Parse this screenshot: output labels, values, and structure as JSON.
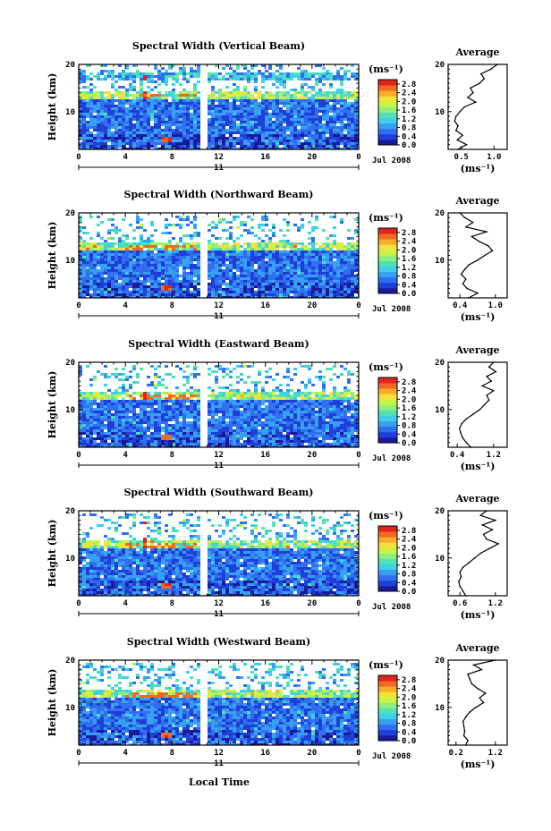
{
  "figure": {
    "date_label": "Jul 2008",
    "day_label": "11",
    "xlabel": "Local Time",
    "ylabel": "Height (km)",
    "unit_label": "(ms⁻¹)",
    "profile_title": "Average",
    "profile_xlabel": "(ms⁻¹)"
  },
  "chart_data": [
    {
      "type": "heatmap",
      "title": "Spectral Width (Vertical Beam)",
      "xlabel": "Local Time",
      "ylabel": "Height (km)",
      "x_ticks": [
        "0",
        "4",
        "8",
        "12",
        "16",
        "20",
        "0"
      ],
      "y_ticks": [
        "10",
        "20"
      ],
      "xlim": [
        0,
        24
      ],
      "ylim": [
        2,
        20
      ],
      "data_gap_hours": [
        10.5,
        11.0
      ],
      "colorbar": {
        "label": "(ms⁻¹)",
        "ticks": [
          "0.0",
          "0.4",
          "0.8",
          "1.2",
          "1.6",
          "2.0",
          "2.4",
          "2.8"
        ],
        "range": [
          0,
          3.0
        ]
      },
      "profile": {
        "title": "Average",
        "xlabel": "(ms⁻¹)",
        "x_ticks": [
          "0.5",
          "1.0"
        ],
        "xlim": [
          0.3,
          1.2
        ],
        "y_ticks": [
          "10",
          "20"
        ],
        "heights": [
          2,
          3,
          4,
          5,
          6,
          7,
          8,
          9,
          10,
          11,
          12,
          13,
          14,
          15,
          16,
          17,
          18,
          19,
          20
        ],
        "values": [
          0.45,
          0.58,
          0.44,
          0.52,
          0.42,
          0.45,
          0.4,
          0.42,
          0.48,
          0.55,
          0.72,
          0.6,
          0.68,
          0.64,
          0.78,
          0.85,
          0.8,
          0.95,
          1.05
        ]
      }
    },
    {
      "type": "heatmap",
      "title": "Spectral Width (Northward Beam)",
      "xlabel": "Local Time",
      "ylabel": "Height (km)",
      "x_ticks": [
        "0",
        "4",
        "8",
        "12",
        "16",
        "20",
        "0"
      ],
      "y_ticks": [
        "10",
        "20"
      ],
      "xlim": [
        0,
        24
      ],
      "ylim": [
        2,
        20
      ],
      "data_gap_hours": [
        10.5,
        11.0
      ],
      "colorbar": {
        "label": "(ms⁻¹)",
        "ticks": [
          "0.0",
          "0.4",
          "0.8",
          "1.2",
          "1.6",
          "2.0",
          "2.4",
          "2.8"
        ],
        "range": [
          0,
          3.0
        ]
      },
      "profile": {
        "title": "Average",
        "xlabel": "(ms⁻¹)",
        "x_ticks": [
          "0.4",
          "1.0"
        ],
        "xlim": [
          0.2,
          1.2
        ],
        "y_ticks": [
          "10",
          "20"
        ],
        "heights": [
          2,
          3,
          4,
          5,
          6,
          7,
          8,
          9,
          10,
          11,
          12,
          13,
          14,
          15,
          16,
          17,
          18,
          19,
          20
        ],
        "values": [
          0.55,
          0.7,
          0.52,
          0.45,
          0.5,
          0.42,
          0.48,
          0.55,
          0.7,
          0.82,
          0.95,
          0.88,
          0.72,
          0.6,
          0.85,
          0.5,
          0.62,
          0.48,
          0.4
        ]
      }
    },
    {
      "type": "heatmap",
      "title": "Spectral Width (Eastward Beam)",
      "xlabel": "Local Time",
      "ylabel": "Height (km)",
      "x_ticks": [
        "0",
        "4",
        "8",
        "12",
        "16",
        "20",
        "0"
      ],
      "y_ticks": [
        "10",
        "20"
      ],
      "xlim": [
        0,
        24
      ],
      "ylim": [
        2,
        20
      ],
      "data_gap_hours": [
        10.5,
        11.0
      ],
      "colorbar": {
        "label": "(ms⁻¹)",
        "ticks": [
          "0.0",
          "0.4",
          "0.8",
          "1.2",
          "1.6",
          "2.0",
          "2.4",
          "2.8"
        ],
        "range": [
          0,
          3.0
        ]
      },
      "profile": {
        "title": "Average",
        "xlabel": "(ms⁻¹)",
        "x_ticks": [
          "0.4",
          "1.2"
        ],
        "xlim": [
          0.2,
          1.5
        ],
        "y_ticks": [
          "10",
          "20"
        ],
        "heights": [
          2,
          3,
          4,
          5,
          6,
          7,
          8,
          9,
          10,
          11,
          12,
          13,
          14,
          15,
          16,
          17,
          18,
          19,
          20
        ],
        "values": [
          0.7,
          0.6,
          0.52,
          0.48,
          0.45,
          0.5,
          0.6,
          0.75,
          0.9,
          1.0,
          1.1,
          1.05,
          1.2,
          0.95,
          1.15,
          1.05,
          1.25,
          1.1,
          1.2
        ]
      }
    },
    {
      "type": "heatmap",
      "title": "Spectral Width (Southward Beam)",
      "xlabel": "Local Time",
      "ylabel": "Height (km)",
      "x_ticks": [
        "0",
        "4",
        "8",
        "12",
        "16",
        "20",
        "0"
      ],
      "y_ticks": [
        "10",
        "20"
      ],
      "xlim": [
        0,
        24
      ],
      "ylim": [
        2,
        20
      ],
      "data_gap_hours": [
        10.5,
        11.0
      ],
      "colorbar": {
        "label": "(ms⁻¹)",
        "ticks": [
          "0.0",
          "0.4",
          "0.8",
          "1.2",
          "1.6",
          "2.0",
          "2.4",
          "2.8"
        ],
        "range": [
          0,
          3.0
        ]
      },
      "profile": {
        "title": "Average",
        "xlabel": "(ms⁻¹)",
        "x_ticks": [
          "0.6",
          "1.2"
        ],
        "xlim": [
          0.4,
          1.4
        ],
        "y_ticks": [
          "10",
          "20"
        ],
        "heights": [
          2,
          3,
          4,
          5,
          6,
          7,
          8,
          9,
          10,
          11,
          12,
          13,
          14,
          15,
          16,
          17,
          18,
          19,
          20
        ],
        "values": [
          0.7,
          0.65,
          0.6,
          0.58,
          0.62,
          0.6,
          0.65,
          0.75,
          0.85,
          0.95,
          1.1,
          1.25,
          1.05,
          1.0,
          1.15,
          0.98,
          1.2,
          0.95,
          1.05
        ]
      }
    },
    {
      "type": "heatmap",
      "title": "Spectral Width (Westward Beam)",
      "xlabel": "Local Time",
      "ylabel": "Height (km)",
      "x_ticks": [
        "0",
        "4",
        "8",
        "12",
        "16",
        "20",
        "0"
      ],
      "y_ticks": [
        "10",
        "20"
      ],
      "xlim": [
        0,
        24
      ],
      "ylim": [
        2,
        20
      ],
      "data_gap_hours": [
        10.5,
        11.0
      ],
      "colorbar": {
        "label": "(ms⁻¹)",
        "ticks": [
          "0.0",
          "0.4",
          "0.8",
          "1.2",
          "1.6",
          "2.0",
          "2.4",
          "2.8"
        ],
        "range": [
          0,
          3.0
        ]
      },
      "profile": {
        "title": "Average",
        "xlabel": "(ms⁻¹)",
        "x_ticks": [
          "0.2",
          "1.2"
        ],
        "xlim": [
          0.0,
          1.5
        ],
        "y_ticks": [
          "10",
          "20"
        ],
        "heights": [
          2,
          3,
          4,
          5,
          6,
          7,
          8,
          9,
          10,
          11,
          12,
          13,
          14,
          15,
          16,
          17,
          18,
          19,
          20
        ],
        "values": [
          0.45,
          0.5,
          0.4,
          0.42,
          0.4,
          0.38,
          0.45,
          0.55,
          0.7,
          0.9,
          0.8,
          0.95,
          0.75,
          0.6,
          0.55,
          0.5,
          0.85,
          0.65,
          1.2
        ]
      }
    }
  ]
}
